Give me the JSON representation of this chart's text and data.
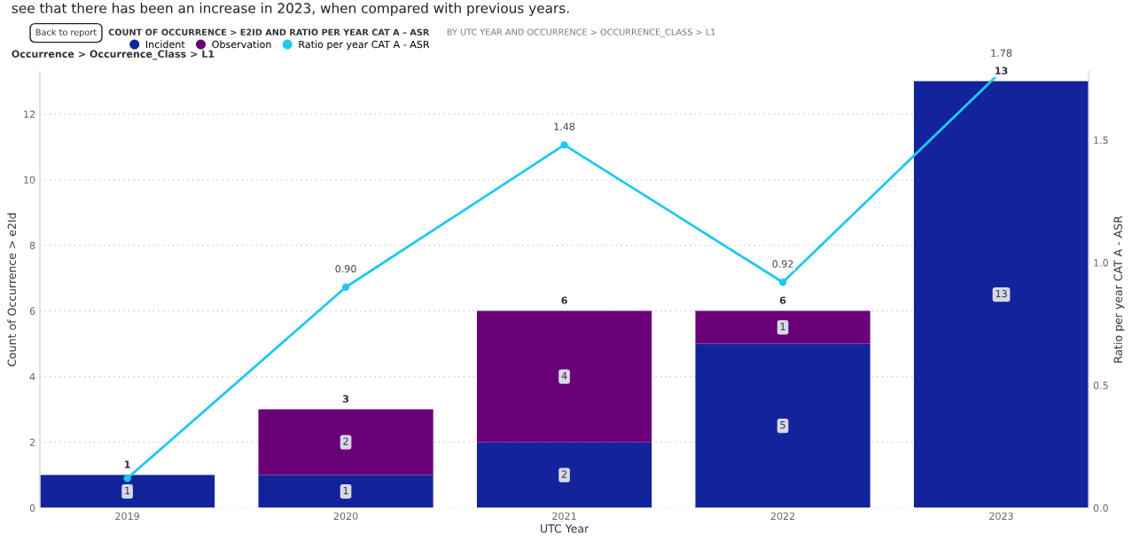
{
  "chart_data": {
    "type": "bar",
    "stacked": true,
    "title": "COUNT OF OCCURRENCE > E2ID AND RATIO PER YEAR CAT A – ASR",
    "subtitle": "BY UTC YEAR AND OCCURRENCE > OCCURRENCE_CLASS > L1",
    "legend_title": "Occurrence > Occurrence_Class > L1",
    "annotations": [
      "see that there has been an increase in 2023, when compared with previous years.",
      "Back to report"
    ],
    "xlabel": "UTC Year",
    "ylabel": "Count of Occurrence > e2Id",
    "y2label": "Ratio per year CAT A - ASR",
    "categories": [
      "2019",
      "2020",
      "2021",
      "2022",
      "2023"
    ],
    "series": [
      {
        "name": "Incident",
        "color": "#13239b",
        "values": [
          1,
          1,
          2,
          5,
          13
        ]
      },
      {
        "name": "Observation",
        "color": "#6a0078",
        "values": [
          null,
          2,
          4,
          1,
          null
        ]
      },
      {
        "name": "Ratio per year CAT A - ASR",
        "type": "line",
        "axis": "y2",
        "color": "#1ec8f0",
        "marker": "circle",
        "values": [
          0.12,
          0.9,
          1.48,
          0.92,
          1.78
        ],
        "value_labels": [
          null,
          "0.90",
          "1.48",
          "0.92",
          "1.78"
        ]
      }
    ],
    "totals": [
      "1",
      "3",
      "6",
      "6",
      "13"
    ],
    "data_labels": true,
    "ylim": [
      0,
      13.3
    ],
    "yticks": [
      0,
      2,
      4,
      6,
      8,
      10,
      12
    ],
    "y2lim": [
      0,
      1.78
    ],
    "y2ticks": [
      {
        "value": 0,
        "label": "0.0"
      },
      {
        "value": 0.5,
        "label": "0.5"
      },
      {
        "value": 1.0,
        "label": "1.0"
      },
      {
        "value": 1.5,
        "label": "1.5"
      }
    ],
    "grid": "y",
    "legend": "top left"
  }
}
